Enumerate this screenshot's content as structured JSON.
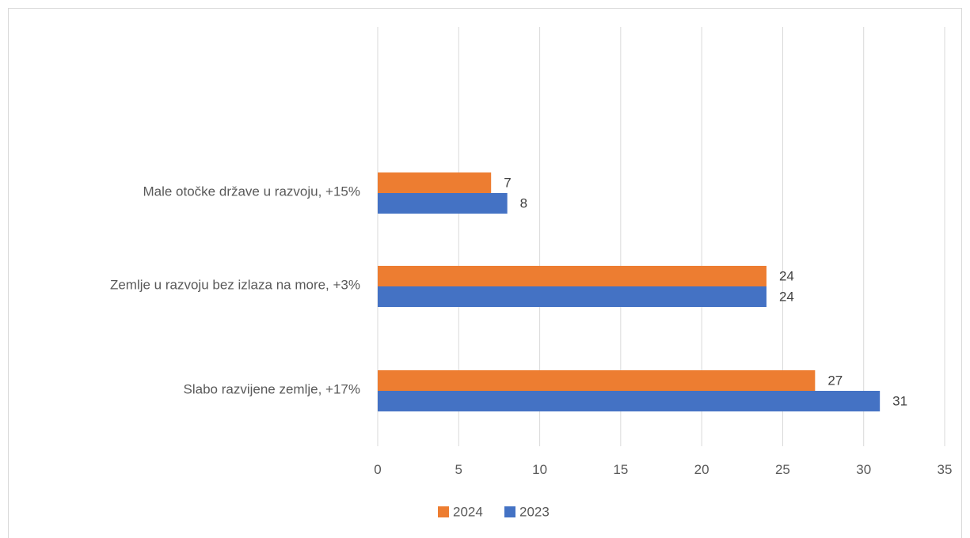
{
  "chart_data": {
    "type": "bar",
    "orientation": "horizontal",
    "title": "",
    "xlabel": "",
    "ylabel": "",
    "categories": [
      "Male otočke države u razvoju, +15%",
      "Zemlje u razvoju bez izlaza na more, +3%",
      "Slabo razvijene zemlje, +17%"
    ],
    "series": [
      {
        "name": "2024",
        "values": [
          7,
          24,
          27
        ],
        "color": "#ED7D31"
      },
      {
        "name": "2023",
        "values": [
          8,
          24,
          31
        ],
        "color": "#4472C4"
      }
    ],
    "xlim": [
      0,
      35
    ],
    "x_ticks": [
      "0",
      "5",
      "10",
      "15",
      "20",
      "25",
      "30",
      "35"
    ],
    "grid": "vertical",
    "legend_position": "bottom",
    "data_labels": true
  }
}
